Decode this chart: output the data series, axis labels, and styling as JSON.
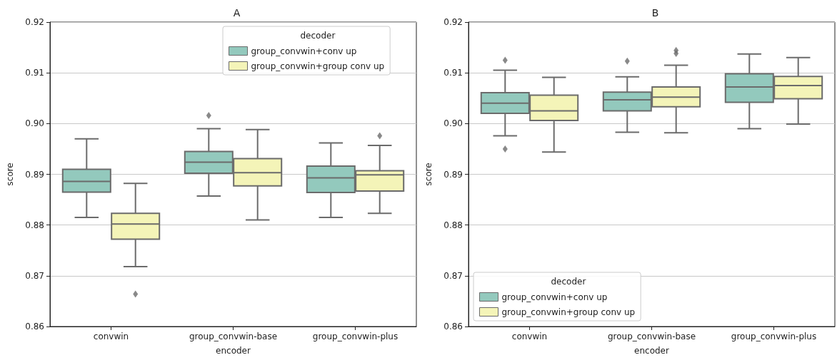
{
  "chart_data": [
    {
      "type": "box",
      "title": "A",
      "xlabel": "encoder",
      "ylabel": "score",
      "legend_title": "decoder",
      "legend": "top right",
      "grid": "y",
      "marker": "diamond",
      "categories": [
        "convwin",
        "group_convwin-base",
        "group_convwin-plus"
      ],
      "ylim": [
        0.86,
        0.92
      ],
      "yticks": [
        0.86,
        0.87,
        0.88,
        0.89,
        {
          "value": 0.9,
          "label": "0.90"
        },
        0.91,
        0.92
      ],
      "series": [
        {
          "name": "group_convwin+conv up",
          "color": "#93c9bd",
          "boxes": [
            {
              "low": 0.8815,
              "q1": 0.8865,
              "median": 0.8886,
              "q3": 0.891,
              "high": 0.897
            },
            {
              "low": 0.8857,
              "q1": 0.8902,
              "median": 0.8924,
              "q3": 0.8945,
              "high": 0.899,
              "outliers": [
                0.9016
              ]
            },
            {
              "low": 0.8815,
              "q1": 0.8864,
              "median": 0.8893,
              "q3": 0.8916,
              "high": 0.8962
            }
          ]
        },
        {
          "name": "group_convwin+group conv up",
          "color": "#f4f4b8",
          "boxes": [
            {
              "low": 0.8718,
              "q1": 0.8772,
              "median": 0.8802,
              "q3": 0.8823,
              "high": 0.8882,
              "outliers": [
                0.8664
              ]
            },
            {
              "low": 0.881,
              "q1": 0.8877,
              "median": 0.8903,
              "q3": 0.8931,
              "high": 0.8988
            },
            {
              "low": 0.8823,
              "q1": 0.8867,
              "median": 0.8899,
              "q3": 0.8907,
              "high": 0.8957,
              "outliers": [
                0.8976
              ]
            }
          ]
        }
      ]
    },
    {
      "type": "box",
      "title": "B",
      "xlabel": "encoder",
      "ylabel": "score",
      "legend_title": "decoder",
      "legend": "bottom left",
      "grid": "y",
      "marker": "diamond",
      "categories": [
        "convwin",
        "group_convwin-base",
        "group_convwin-plus"
      ],
      "ylim": [
        0.86,
        0.92
      ],
      "yticks": [
        0.86,
        0.87,
        0.88,
        0.89,
        {
          "value": 0.9,
          "label": "0.90"
        },
        0.91,
        0.92
      ],
      "series": [
        {
          "name": "group_convwin+conv up",
          "color": "#93c9bd",
          "boxes": [
            {
              "low": 0.8976,
              "q1": 0.902,
              "median": 0.904,
              "q3": 0.9061,
              "high": 0.9105,
              "outliers": [
                0.9125,
                0.895
              ]
            },
            {
              "low": 0.8983,
              "q1": 0.9025,
              "median": 0.9047,
              "q3": 0.9062,
              "high": 0.9092,
              "outliers": [
                0.9123
              ]
            },
            {
              "low": 0.899,
              "q1": 0.9042,
              "median": 0.9072,
              "q3": 0.9098,
              "high": 0.9137
            }
          ]
        },
        {
          "name": "group_convwin+group conv up",
          "color": "#f4f4b8",
          "boxes": [
            {
              "low": 0.8944,
              "q1": 0.9006,
              "median": 0.9025,
              "q3": 0.9056,
              "high": 0.9091
            },
            {
              "low": 0.8982,
              "q1": 0.9033,
              "median": 0.9052,
              "q3": 0.9072,
              "high": 0.9115,
              "outliers": [
                0.9144,
                0.9138
              ]
            },
            {
              "low": 0.8999,
              "q1": 0.9049,
              "median": 0.9075,
              "q3": 0.9093,
              "high": 0.913
            }
          ]
        }
      ]
    }
  ]
}
